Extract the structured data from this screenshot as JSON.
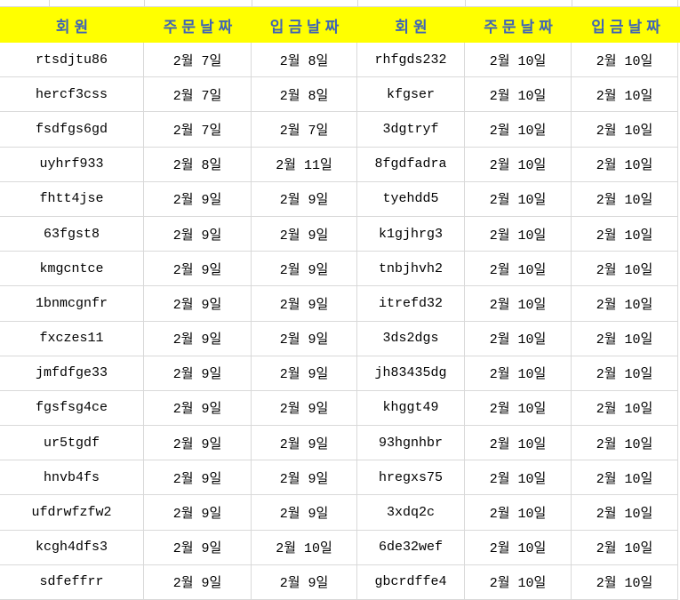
{
  "colors": {
    "header_bg": "#FFFF00",
    "header_text": "#3F64B5",
    "grid": "#D9D9D9",
    "body_text": "#000000"
  },
  "header": {
    "columns": [
      "회원",
      "주문날짜",
      "입금날짜",
      "회원",
      "주문날짜",
      "입금날짜"
    ]
  },
  "rows": [
    [
      "rtsdjtu86",
      "2월 7일",
      "2월 8일",
      "rhfgds232",
      "2월 10일",
      "2월 10일"
    ],
    [
      "hercf3css",
      "2월 7일",
      "2월 8일",
      "kfgser",
      "2월 10일",
      "2월 10일"
    ],
    [
      "fsdfgs6gd",
      "2월 7일",
      "2월 7일",
      "3dgtryf",
      "2월 10일",
      "2월 10일"
    ],
    [
      "uyhrf933",
      "2월 8일",
      "2월 11일",
      "8fgdfadra",
      "2월 10일",
      "2월 10일"
    ],
    [
      "fhtt4jse",
      "2월 9일",
      "2월 9일",
      "tyehdd5",
      "2월 10일",
      "2월 10일"
    ],
    [
      "63fgst8",
      "2월 9일",
      "2월 9일",
      "k1gjhrg3",
      "2월 10일",
      "2월 10일"
    ],
    [
      "kmgcntce",
      "2월 9일",
      "2월 9일",
      "tnbjhvh2",
      "2월 10일",
      "2월 10일"
    ],
    [
      "1bnmcgnfr",
      "2월 9일",
      "2월 9일",
      "itrefd32",
      "2월 10일",
      "2월 10일"
    ],
    [
      "fxczes11",
      "2월 9일",
      "2월 9일",
      "3ds2dgs",
      "2월 10일",
      "2월 10일"
    ],
    [
      "jmfdfge33",
      "2월 9일",
      "2월 9일",
      "jh83435dg",
      "2월 10일",
      "2월 10일"
    ],
    [
      "fgsfsg4ce",
      "2월 9일",
      "2월 9일",
      "khggt49",
      "2월 10일",
      "2월 10일"
    ],
    [
      "ur5tgdf",
      "2월 9일",
      "2월 9일",
      "93hgnhbr",
      "2월 10일",
      "2월 10일"
    ],
    [
      "hnvb4fs",
      "2월 9일",
      "2월 9일",
      "hregxs75",
      "2월 10일",
      "2월 10일"
    ],
    [
      "ufdrwfzfw2",
      "2월 9일",
      "2월 9일",
      "3xdq2c",
      "2월 10일",
      "2월 10일"
    ],
    [
      "kcgh4dfs3",
      "2월 9일",
      "2월 10일",
      "6de32wef",
      "2월 10일",
      "2월 10일"
    ],
    [
      "sdfeffrr",
      "2월 9일",
      "2월 9일",
      "gbcrdffe4",
      "2월 10일",
      "2월 10일"
    ]
  ]
}
